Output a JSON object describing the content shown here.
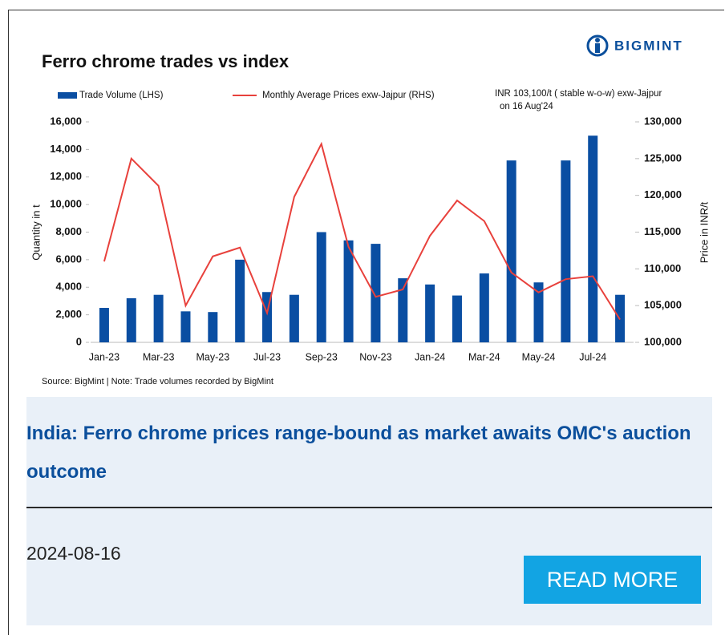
{
  "chart_data": {
    "type": "bar_line",
    "title": "Ferro chrome trades vs index",
    "brand": "BIGMINT",
    "annotation": [
      "INR 103,100/t  ( stable w-o-w)  exw-Jajpur",
      "on 16 Aug'24"
    ],
    "source": "Source: BigMint | Note: Trade volumes recorded by BigMint",
    "ylabel": "Quantity in t",
    "y2label": "Price in INR/t",
    "categories": [
      "Jan-23",
      null,
      "Mar-23",
      null,
      "May-23",
      null,
      "Jul-23",
      null,
      "Sep-23",
      null,
      "Nov-23",
      null,
      "Jan-24",
      null,
      "Mar-24",
      null,
      "May-24",
      null,
      "Jul-24",
      null
    ],
    "series": [
      {
        "name": "Trade Volume (LHS)",
        "kind": "bar",
        "color": "#0a4ea2",
        "axis": "y",
        "values": [
          2500,
          3200,
          3450,
          2250,
          2200,
          6000,
          3650,
          3450,
          8000,
          7400,
          7150,
          4650,
          4200,
          3400,
          5000,
          13200,
          4350,
          13200,
          15000,
          3450
        ]
      },
      {
        "name": "Monthly Average Prices exw-Jajpur (RHS)",
        "kind": "line",
        "color": "#e8413c",
        "axis": "y2",
        "values": [
          111000,
          125000,
          121300,
          105000,
          111700,
          112900,
          104000,
          119800,
          127000,
          113000,
          106200,
          107200,
          114500,
          119300,
          116500,
          109500,
          106800,
          108600,
          109000,
          103100
        ]
      }
    ],
    "ylim": [
      0,
      16000
    ],
    "yticks": [
      0,
      {
        "value": 2000,
        "label": "2,000"
      },
      {
        "value": 4000,
        "label": "4,000"
      },
      {
        "value": 6000,
        "label": "6,000"
      },
      {
        "value": 8000,
        "label": "8,000"
      },
      {
        "value": 10000,
        "label": "10,000"
      },
      {
        "value": 12000,
        "label": "12,000"
      },
      {
        "value": 14000,
        "label": "14,000"
      },
      {
        "value": 16000,
        "label": "16,000"
      }
    ],
    "y2lim": [
      100000,
      130000
    ],
    "y2ticks": [
      {
        "value": 100000,
        "label": "100,000"
      },
      {
        "value": 105000,
        "label": "105,000"
      },
      {
        "value": 110000,
        "label": "110,000"
      },
      {
        "value": 115000,
        "label": "115,000"
      },
      {
        "value": 120000,
        "label": "120,000"
      },
      {
        "value": 125000,
        "label": "125,000"
      },
      {
        "value": 130000,
        "label": "130,000"
      }
    ]
  },
  "card": {
    "headline": "India: Ferro chrome prices range-bound as market awaits OMC's auction outcome",
    "date": "2024-08-16",
    "button": "READ MORE"
  }
}
